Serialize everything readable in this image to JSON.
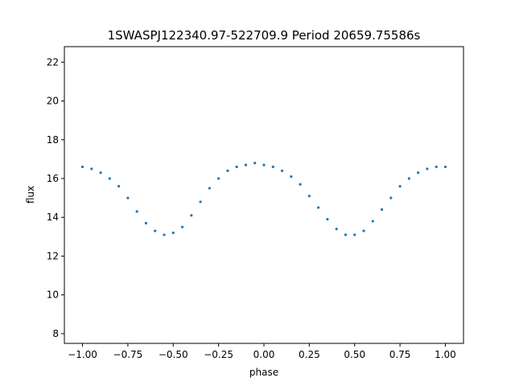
{
  "chart_data": {
    "type": "scatter",
    "title": "1SWASPJ122340.97-522709.9 Period 20659.75586s",
    "xlabel": "phase",
    "ylabel": "flux",
    "xlim": [
      -1.1,
      1.1
    ],
    "ylim": [
      7.5,
      22.8
    ],
    "xticks": [
      -1.0,
      -0.75,
      -0.5,
      -0.25,
      0.0,
      0.25,
      0.5,
      0.75,
      1.0
    ],
    "xtick_labels": [
      "−1.00",
      "−0.75",
      "−0.50",
      "−0.25",
      "0.00",
      "0.25",
      "0.50",
      "0.75",
      "1.00"
    ],
    "yticks": [
      8,
      10,
      12,
      14,
      16,
      18,
      20,
      22
    ],
    "ytick_labels": [
      "8",
      "10",
      "12",
      "14",
      "16",
      "18",
      "20",
      "22"
    ],
    "grid": false,
    "point_color": "#1f77b4",
    "series": [
      {
        "x": [
          -1.0,
          -0.95,
          -0.9,
          -0.85,
          -0.8,
          -0.75,
          -0.7,
          -0.65,
          -0.6,
          -0.55,
          -0.5,
          -0.45,
          -0.4,
          -0.35,
          -0.3,
          -0.25,
          -0.2,
          -0.15,
          -0.1,
          -0.05,
          0.0,
          0.05,
          0.1,
          0.15,
          0.2,
          0.25,
          0.3,
          0.35,
          0.4,
          0.45,
          0.5,
          0.55,
          0.6,
          0.65,
          0.7,
          0.75,
          0.8,
          0.85,
          0.9,
          0.95,
          1.0
        ],
        "y": [
          16.6,
          16.5,
          16.3,
          16.0,
          15.6,
          15.0,
          14.3,
          13.7,
          13.3,
          13.1,
          13.2,
          13.5,
          14.1,
          14.8,
          15.5,
          16.0,
          16.4,
          16.6,
          16.7,
          16.8,
          16.7,
          16.6,
          16.4,
          16.1,
          15.7,
          15.1,
          14.5,
          13.9,
          13.4,
          13.1,
          13.1,
          13.3,
          13.8,
          14.4,
          15.0,
          15.6,
          16.0,
          16.3,
          16.5,
          16.6,
          16.6
        ]
      }
    ]
  }
}
